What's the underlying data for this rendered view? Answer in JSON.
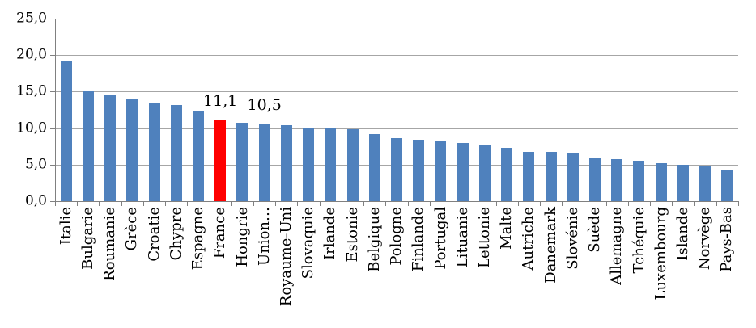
{
  "chart_data": {
    "type": "bar",
    "title": "",
    "categories": [
      "Italie",
      "Bulgarie",
      "Roumanie",
      "Grèce",
      "Croatie",
      "Chypre",
      "Espagne",
      "France",
      "Hongrie",
      "Union…",
      "Royaume-Uni",
      "Slovaquie",
      "Irlande",
      "Estonie",
      "Belgique",
      "Pologne",
      "Finlande",
      "Portugal",
      "Lituanie",
      "Lettonie",
      "Malte",
      "Autriche",
      "Danemark",
      "Slovénie",
      "Suède",
      "Allemagne",
      "Tchéquie",
      "Luxembourg",
      "Islande",
      "Norvège",
      "Pays-Bas"
    ],
    "values": [
      19.1,
      15.0,
      14.5,
      14.1,
      13.5,
      13.2,
      12.4,
      11.1,
      10.7,
      10.5,
      10.4,
      10.1,
      10.0,
      9.8,
      9.2,
      8.6,
      8.4,
      8.3,
      8.0,
      7.7,
      7.3,
      6.8,
      6.8,
      6.6,
      6.0,
      5.8,
      5.5,
      5.2,
      5.0,
      4.9,
      4.2
    ],
    "highlight_index": 7,
    "data_labels": [
      {
        "index": 7,
        "text": "11,1"
      },
      {
        "index": 9,
        "text": "10,5"
      }
    ],
    "y_axis": {
      "range": [
        0,
        25
      ],
      "ticks": [
        {
          "value": 25,
          "label": "25,0"
        },
        {
          "value": 20,
          "label": "20,0"
        },
        {
          "value": 15,
          "label": "15,0"
        },
        {
          "value": 10,
          "label": "10,0"
        },
        {
          "value": 5,
          "label": "5,0"
        },
        {
          "value": 0,
          "label": "0,0"
        }
      ]
    },
    "grid": true,
    "legend": "none",
    "colors": {
      "bar": "#4F81BD",
      "highlight": "#FF0000",
      "grid": "#A6A6A6",
      "axis": "#808080",
      "text": "#000000",
      "background": "#FFFFFF"
    }
  }
}
